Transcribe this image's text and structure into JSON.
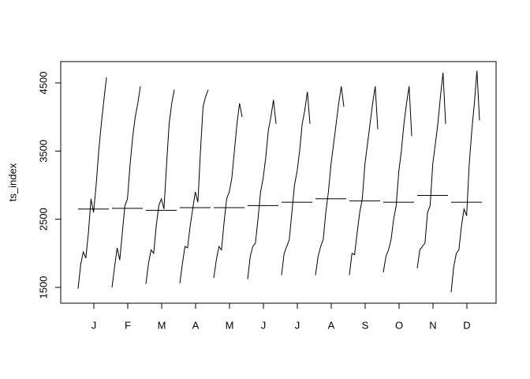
{
  "chart_data": {
    "type": "monthplot",
    "ylabel": "ts_index",
    "categories": [
      "J",
      "F",
      "M",
      "A",
      "M",
      "J",
      "J",
      "A",
      "S",
      "O",
      "N",
      "D"
    ],
    "values": [
      [
        1480,
        1830,
        2020,
        1930,
        2300,
        2800,
        2600,
        3000,
        3500,
        3900,
        4250,
        4580
      ],
      [
        1500,
        1800,
        2080,
        1900,
        2300,
        2700,
        2800,
        3300,
        3700,
        4000,
        4200,
        4450
      ],
      [
        1550,
        1850,
        2050,
        2000,
        2400,
        2700,
        2800,
        2650,
        3300,
        3900,
        4200,
        4400
      ],
      [
        1560,
        1850,
        2100,
        2080,
        2400,
        2650,
        2900,
        2750,
        3500,
        4150,
        4300,
        4400
      ],
      [
        1640,
        1900,
        2100,
        2050,
        2450,
        2800,
        2900,
        3100,
        3500,
        3900,
        4200,
        4000
      ],
      [
        1620,
        1950,
        2100,
        2150,
        2500,
        2900,
        3100,
        3400,
        3800,
        4000,
        4250,
        3900
      ],
      [
        1680,
        2000,
        2100,
        2200,
        2600,
        3000,
        3200,
        3500,
        3900,
        4100,
        4370,
        3900
      ],
      [
        1680,
        1950,
        2100,
        2200,
        2600,
        2900,
        3300,
        3600,
        3900,
        4200,
        4450,
        4150
      ],
      [
        1680,
        2000,
        1980,
        2300,
        2600,
        2800,
        3300,
        3600,
        3900,
        4200,
        4450,
        3820
      ],
      [
        1720,
        1950,
        2050,
        2200,
        2500,
        2700,
        3200,
        3500,
        3900,
        4200,
        4450,
        3720
      ],
      [
        1780,
        2050,
        2100,
        2150,
        2600,
        2700,
        3300,
        3600,
        3900,
        4300,
        4650,
        3900
      ],
      [
        1430,
        1800,
        2000,
        2050,
        2400,
        2650,
        2550,
        3300,
        3800,
        4200,
        4680,
        3950
      ]
    ],
    "means": [
      2650,
      2660,
      2630,
      2670,
      2670,
      2700,
      2750,
      2800,
      2770,
      2750,
      2850,
      2750
    ],
    "color": "#000000",
    "ylim": [
      1268,
      4813
    ],
    "yticks": [
      1500,
      2500,
      3500,
      4500
    ]
  }
}
